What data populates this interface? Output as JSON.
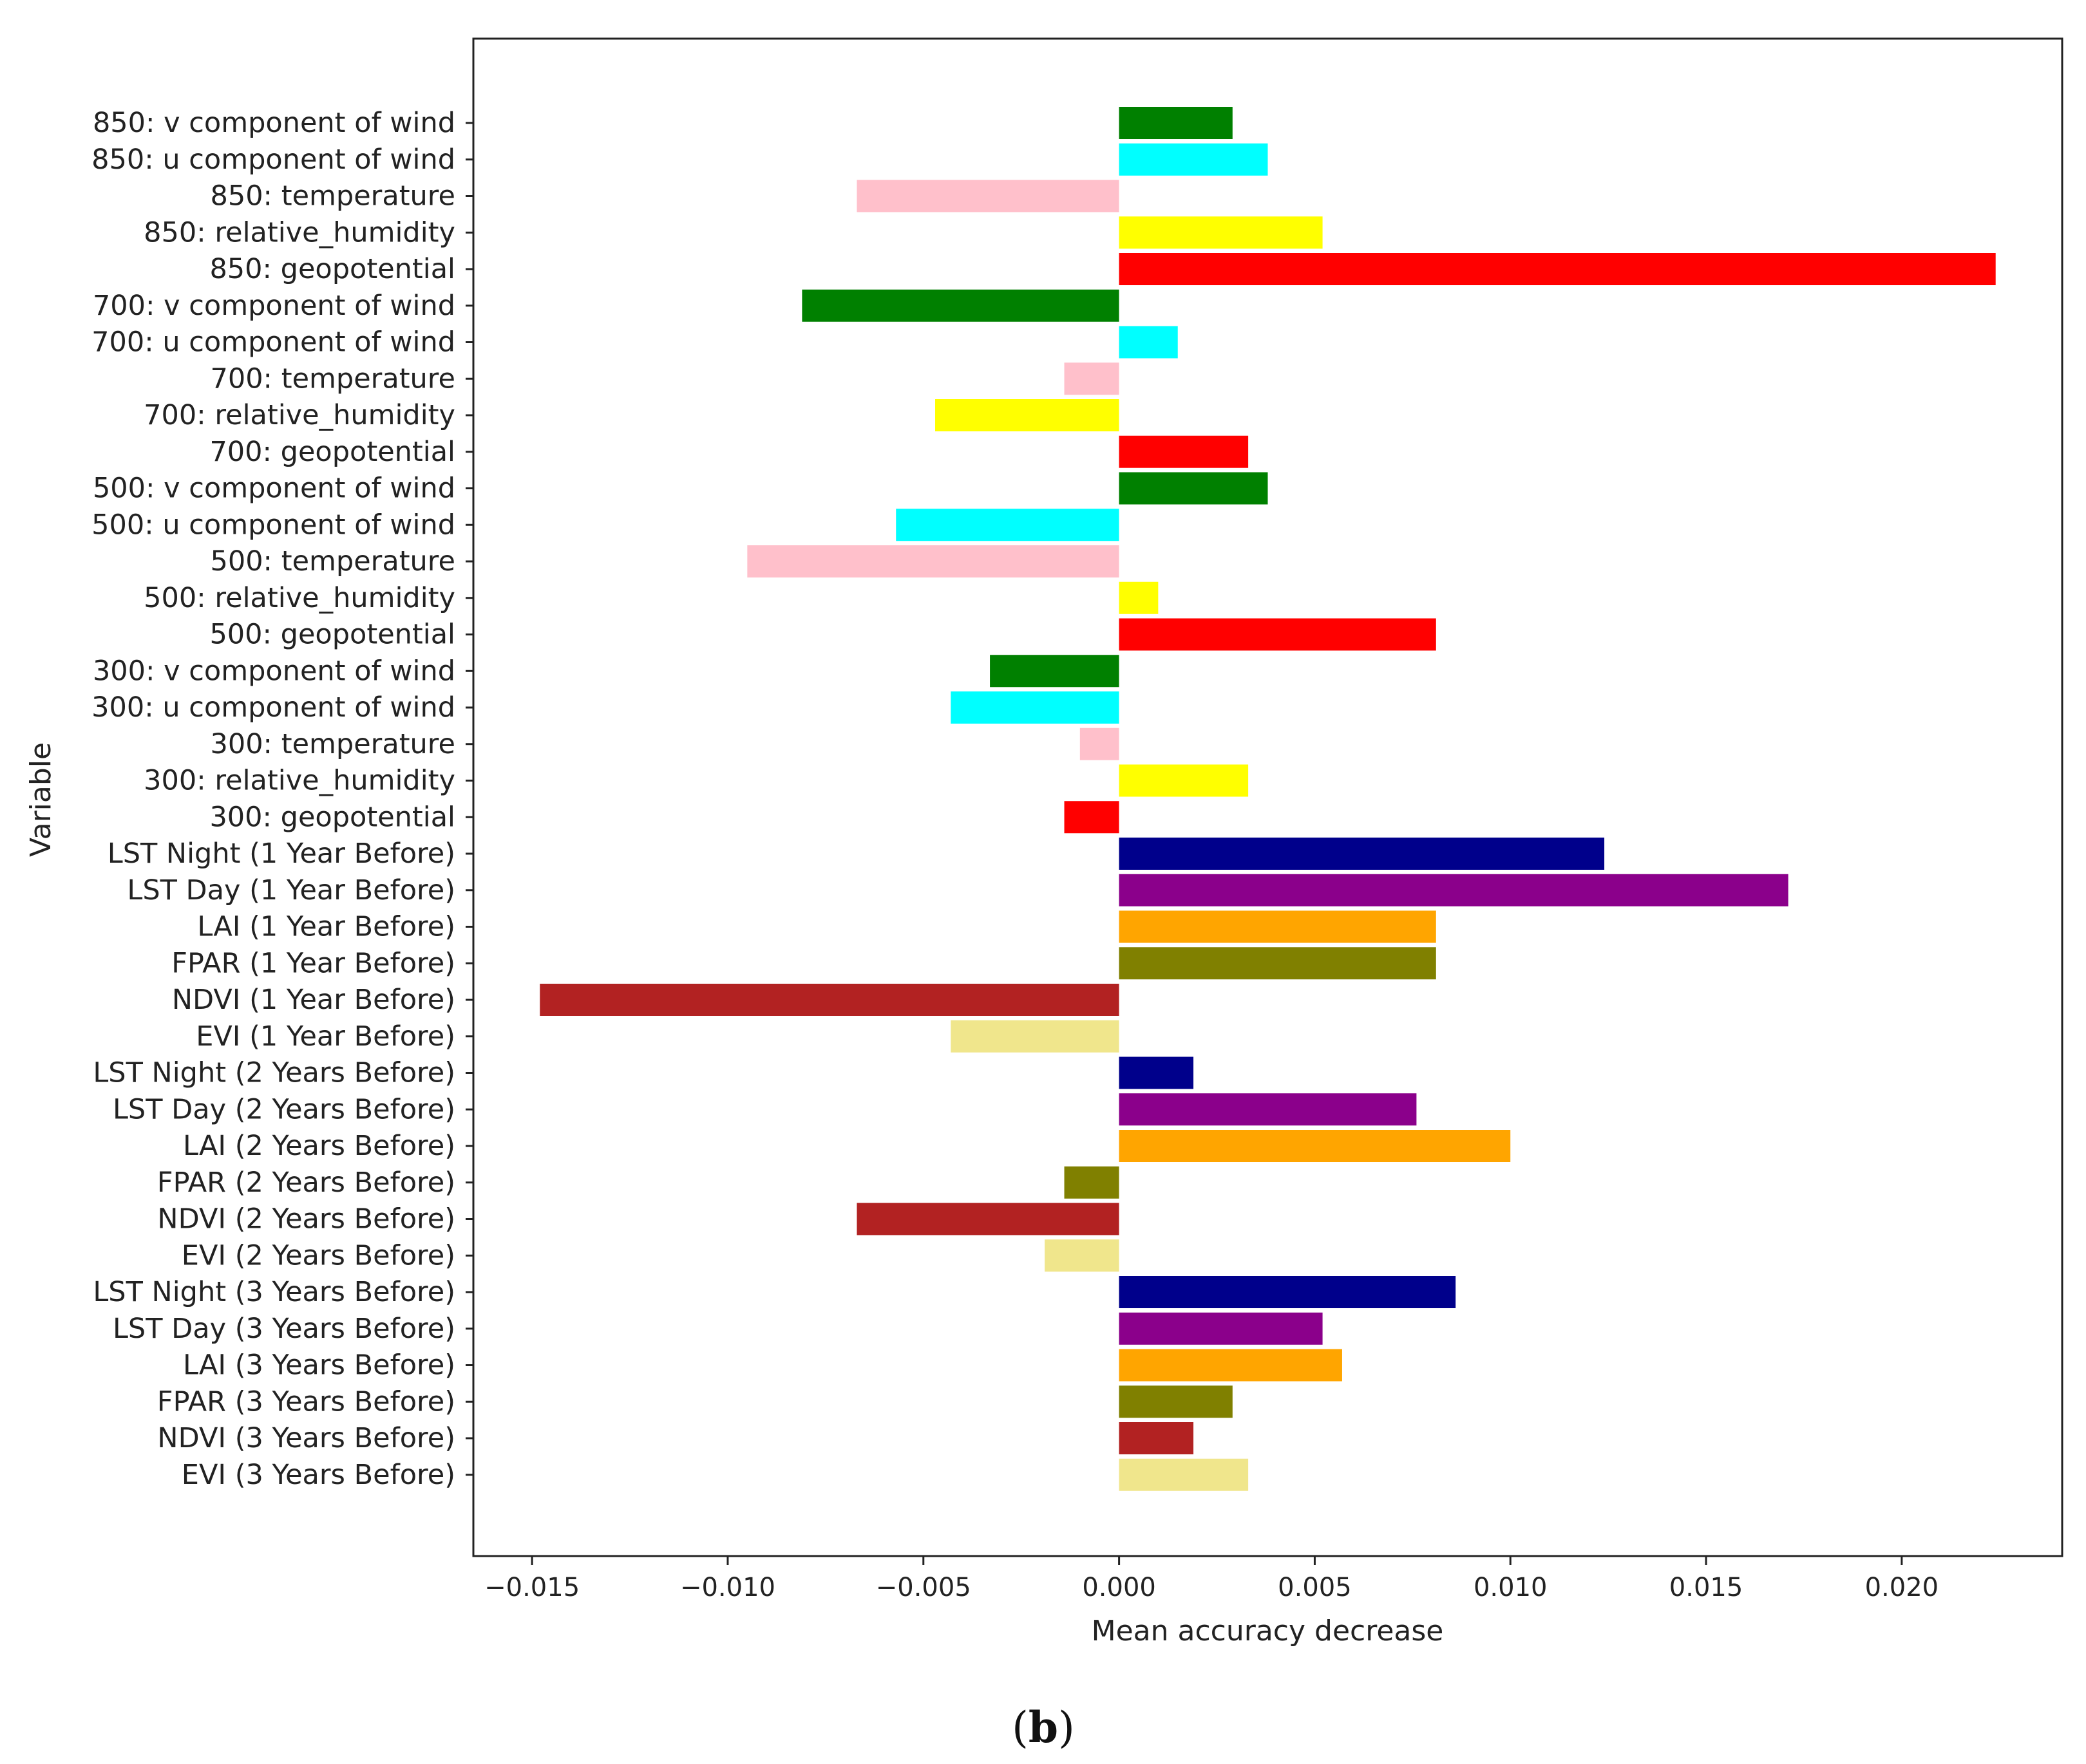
{
  "chart_data": {
    "type": "bar",
    "orientation": "horizontal",
    "panel_label": "b",
    "xlabel": "Mean accuracy decrease",
    "ylabel": "Variable",
    "xlim": [
      -0.0165,
      0.0241
    ],
    "xticks": [
      -0.015,
      -0.01,
      -0.005,
      0.0,
      0.005,
      0.01,
      0.015,
      0.02
    ],
    "xtick_labels": [
      "−0.015",
      "−0.010",
      "−0.005",
      "0.000",
      "0.005",
      "0.010",
      "0.015",
      "0.020"
    ],
    "grid": false,
    "categories": [
      "850: v component of wind",
      "850: u component of wind",
      "850: temperature",
      "850: relative_humidity",
      "850: geopotential",
      "700: v component of wind",
      "700: u component of wind",
      "700: temperature",
      "700: relative_humidity",
      "700: geopotential",
      "500: v component of wind",
      "500: u component of wind",
      "500: temperature",
      "500: relative_humidity",
      "500: geopotential",
      "300: v component of wind",
      "300: u component of wind",
      "300: temperature",
      "300: relative_humidity",
      "300: geopotential",
      "LST Night (1 Year Before)",
      "LST Day (1 Year Before)",
      "LAI (1 Year Before)",
      "FPAR (1 Year Before)",
      "NDVI (1 Year Before)",
      "EVI (1 Year Before)",
      "LST Night (2 Years Before)",
      "LST Day (2 Years Before)",
      "LAI (2 Years Before)",
      "FPAR (2 Years Before)",
      "NDVI (2 Years Before)",
      "EVI (2 Years Before)",
      "LST Night (3 Years Before)",
      "LST Day (3 Years Before)",
      "LAI (3 Years Before)",
      "FPAR (3 Years Before)",
      "NDVI (3 Years Before)",
      "EVI (3 Years Before)"
    ],
    "values": [
      0.0029,
      0.0038,
      -0.0067,
      0.0052,
      0.0224,
      -0.0081,
      0.0015,
      -0.0014,
      -0.0047,
      0.0033,
      0.0038,
      -0.0057,
      -0.0095,
      0.001,
      0.0081,
      -0.0033,
      -0.0043,
      -0.001,
      0.0033,
      -0.0014,
      0.0124,
      0.0171,
      0.0081,
      0.0081,
      -0.0148,
      -0.0043,
      0.0019,
      0.0076,
      0.01,
      -0.0014,
      -0.0067,
      -0.0019,
      0.0086,
      0.0052,
      0.0057,
      0.0029,
      0.0019,
      0.0033
    ],
    "colors": [
      "#008000",
      "#00ffff",
      "#ffc0cb",
      "#ffff00",
      "#ff0000",
      "#008000",
      "#00ffff",
      "#ffc0cb",
      "#ffff00",
      "#ff0000",
      "#008000",
      "#00ffff",
      "#ffc0cb",
      "#ffff00",
      "#ff0000",
      "#008000",
      "#00ffff",
      "#ffc0cb",
      "#ffff00",
      "#ff0000",
      "#00008b",
      "#8b008b",
      "#ffa500",
      "#808000",
      "#b22222",
      "#f0e68c",
      "#00008b",
      "#8b008b",
      "#ffa500",
      "#808000",
      "#b22222",
      "#f0e68c",
      "#00008b",
      "#8b008b",
      "#ffa500",
      "#808000",
      "#b22222",
      "#f0e68c"
    ]
  }
}
